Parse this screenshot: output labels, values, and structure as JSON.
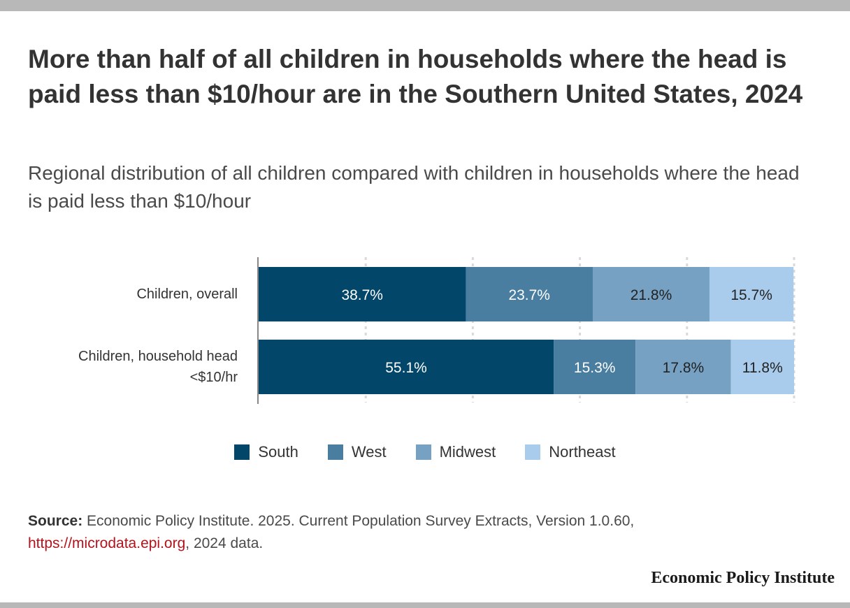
{
  "title": "More than half of all children in households where the head is paid less than $10/hour are in the Southern United States, 2024",
  "subtitle": "Regional distribution of all children compared with children in households where the head is paid less than $10/hour",
  "chart_data": {
    "type": "bar",
    "orientation": "horizontal",
    "stacked": true,
    "categories": [
      "Children, overall",
      "Children, household head <$10/hr"
    ],
    "category_lines": [
      [
        "Children, overall"
      ],
      [
        "Children, household head",
        "<$10/hr"
      ]
    ],
    "series": [
      {
        "name": "South",
        "color": "#02466a",
        "values": [
          38.7,
          55.1
        ],
        "labels": [
          "38.7%",
          "55.1%"
        ],
        "label_color": "#ffffff"
      },
      {
        "name": "West",
        "color": "#497ea0",
        "values": [
          23.7,
          15.3
        ],
        "labels": [
          "23.7%",
          "15.3%"
        ],
        "label_color": "#ffffff"
      },
      {
        "name": "Midwest",
        "color": "#76a1c3",
        "values": [
          21.8,
          17.8
        ],
        "labels": [
          "21.8%",
          "17.8%"
        ],
        "label_color": "#222222"
      },
      {
        "name": "Northeast",
        "color": "#a9ccec",
        "values": [
          15.7,
          11.8
        ],
        "labels": [
          "15.7%",
          "11.8%"
        ],
        "label_color": "#222222"
      }
    ],
    "xlim": [
      0,
      100
    ],
    "grid": "vertical dotted",
    "legend_position": "bottom"
  },
  "source": {
    "label": "Source:",
    "text": " Economic Policy Institute. 2025. Current Population Survey Extracts, Version 1.0.60,",
    "link": "https://microdata.epi.org",
    "tail": ", 2024 data."
  },
  "brand": "Economic Policy Institute"
}
